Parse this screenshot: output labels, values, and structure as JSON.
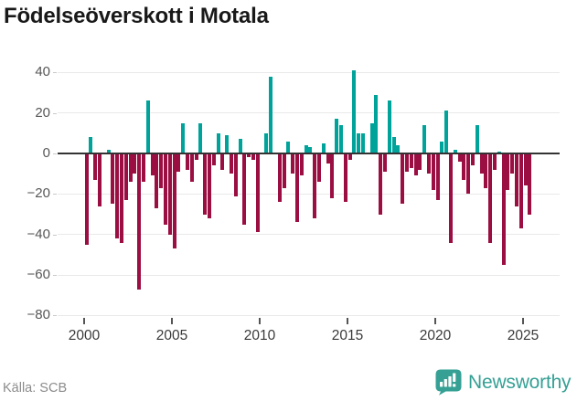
{
  "title": "Födelseöverskott i Motala",
  "footer": {
    "source": "Källa: SCB",
    "brand": "Newsworthy"
  },
  "colors": {
    "positive": "#00a39a",
    "negative": "#9b0e42",
    "zero_line": "#333333",
    "grid": "#e9e9e9",
    "brand_teal": "#36a095",
    "title_text": "#191919",
    "axis_text": "#575757"
  },
  "chart_data": {
    "type": "bar",
    "title": "Födelseöverskott i Motala",
    "xlabel": "",
    "ylabel": "",
    "grid": true,
    "legend": false,
    "ylim": [
      -80,
      40
    ],
    "y_ticks": [
      40,
      20,
      0,
      -20,
      -40,
      -60,
      -80
    ],
    "y_tick_labels": [
      "40",
      "20",
      "0",
      "−20",
      "−40",
      "−60",
      "−80"
    ],
    "x_tick_labels": [
      "2000",
      "2005",
      "2010",
      "2015",
      "2020",
      "2025"
    ],
    "periods": [
      "2000 K1",
      "2000 K2",
      "2000 K3",
      "2000 K4",
      "2001 K1",
      "2001 K2",
      "2001 K3",
      "2001 K4",
      "2002 K1",
      "2002 K2",
      "2002 K3",
      "2002 K4",
      "2003 K1",
      "2003 K2",
      "2003 K3",
      "2003 K4",
      "2004 K1",
      "2004 K2",
      "2004 K3",
      "2004 K4",
      "2005 K1",
      "2005 K2",
      "2005 K3",
      "2005 K4",
      "2006 K1",
      "2006 K2",
      "2006 K3",
      "2006 K4",
      "2007 K1",
      "2007 K2",
      "2007 K3",
      "2007 K4",
      "2008 K1",
      "2008 K2",
      "2008 K3",
      "2008 K4",
      "2009 K1",
      "2009 K2",
      "2009 K3",
      "2009 K4",
      "2010 K1",
      "2010 K2",
      "2010 K3",
      "2010 K4",
      "2011 K1",
      "2011 K2",
      "2011 K3",
      "2011 K4",
      "2012 K1",
      "2012 K2",
      "2012 K3",
      "2012 K4",
      "2013 K1",
      "2013 K2",
      "2013 K3",
      "2013 K4",
      "2014 K1",
      "2014 K2",
      "2014 K3",
      "2014 K4",
      "2015 K1",
      "2015 K2",
      "2015 K3",
      "2015 K4",
      "2016 K1",
      "2016 K2",
      "2016 K3",
      "2016 K4",
      "2017 K1",
      "2017 K2",
      "2017 K3",
      "2017 K4",
      "2018 K1",
      "2018 K2",
      "2018 K3",
      "2018 K4",
      "2019 K1",
      "2019 K2",
      "2019 K3",
      "2019 K4",
      "2020 K1",
      "2020 K2",
      "2020 K3",
      "2020 K4",
      "2021 K1",
      "2021 K2",
      "2021 K3",
      "2021 K4",
      "2022 K1",
      "2022 K2",
      "2022 K3",
      "2022 K4",
      "2023 K1",
      "2023 K2",
      "2023 K3",
      "2023 K4",
      "2024 K1",
      "2024 K2",
      "2024 K3",
      "2024 K4",
      "2025 K1",
      "2025 K2"
    ],
    "values": [
      -45,
      8,
      -13,
      -26,
      0,
      2,
      -25,
      -42,
      -44,
      -23,
      -14,
      -10,
      -67,
      -14,
      26,
      -11,
      -27,
      -17,
      -35,
      -40,
      -47,
      -9,
      15,
      -8,
      -14,
      -3,
      15,
      -30,
      -32,
      -6,
      10,
      -8,
      9,
      -10,
      -21,
      7,
      -35,
      -2,
      -3,
      -39,
      0,
      10,
      38,
      0,
      -24,
      -17,
      6,
      -10,
      -34,
      -11,
      4,
      3,
      -32,
      -14,
      5,
      -5,
      -22,
      17,
      14,
      -24,
      -3,
      41,
      10,
      10,
      0,
      15,
      29,
      -30,
      -9,
      26,
      8,
      4,
      -25,
      -9,
      -7,
      -11,
      -8,
      14,
      -10,
      -18,
      -23,
      6,
      21,
      -44,
      2,
      -4,
      -13,
      -20,
      -6,
      14,
      -10,
      -17,
      -44,
      -8,
      1,
      -55,
      -18,
      -10,
      -26,
      -37,
      -16,
      -30
    ]
  }
}
